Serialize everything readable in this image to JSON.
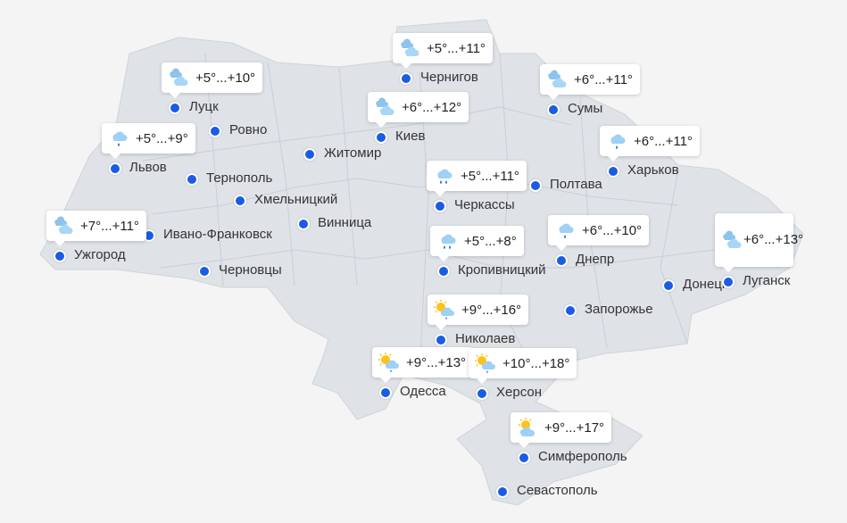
{
  "colors": {
    "land": "#dfe3e8",
    "border": "#c9ced5",
    "dot": "#1a5ce6",
    "sea": "#f4f4f5"
  },
  "cities": [
    {
      "name": "Чернигов",
      "icon": "cloudy-icon",
      "temp": "+5°...+11°"
    },
    {
      "name": "Луцк",
      "icon": "cloudy-icon",
      "temp": "+5°...+10°"
    },
    {
      "name": "Сумы",
      "icon": "cloudy-icon",
      "temp": "+6°...+11°"
    },
    {
      "name": "Киев",
      "icon": "cloudy-icon",
      "temp": "+6°...+12°"
    },
    {
      "name": "Ровно"
    },
    {
      "name": "Львов",
      "icon": "rain-icon",
      "temp": "+5°...+9°"
    },
    {
      "name": "Житомир"
    },
    {
      "name": "Харьков",
      "icon": "rain-icon",
      "temp": "+6°...+11°"
    },
    {
      "name": "Тернополь"
    },
    {
      "name": "Полтава"
    },
    {
      "name": "Хмельницкий"
    },
    {
      "name": "Черкассы",
      "icon": "heavy-rain-icon",
      "temp": "+5°...+11°"
    },
    {
      "name": "Винница"
    },
    {
      "name": "Ивано-Франковск"
    },
    {
      "name": "Ужгород",
      "icon": "cloudy-icon",
      "temp": "+7°...+11°"
    },
    {
      "name": "Черновцы"
    },
    {
      "name": "Кропивницкий",
      "icon": "heavy-rain-icon",
      "temp": "+5°...+8°"
    },
    {
      "name": "Днепр",
      "icon": "rain-icon",
      "temp": "+6°...+10°"
    },
    {
      "name": "Донецк"
    },
    {
      "name": "Луганск",
      "icon": "cloudy-icon",
      "temp": "+6°...+13°"
    },
    {
      "name": "Запорожье"
    },
    {
      "name": "Николаев",
      "icon": "sun-cloud-rain-icon",
      "temp": "+9°...+16°"
    },
    {
      "name": "Одесса",
      "icon": "sun-cloud-rain-icon",
      "temp": "+9°...+13°"
    },
    {
      "name": "Херсон",
      "icon": "sun-cloud-rain-icon",
      "temp": "+10°...+18°"
    },
    {
      "name": "Симферополь",
      "icon": "partly-cloudy-icon",
      "temp": "+9°...+17°"
    },
    {
      "name": "Севастополь"
    }
  ]
}
